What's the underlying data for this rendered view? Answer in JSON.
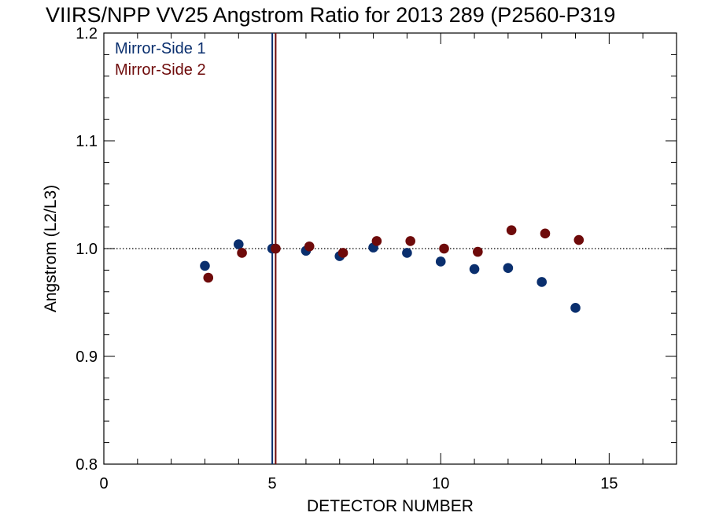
{
  "chart_data": {
    "type": "scatter",
    "title": "VIIRS/NPP VV25 Angstrom Ratio for 2013 289 (P2560-P319",
    "xlabel": "DETECTOR NUMBER",
    "ylabel": "Angstrom (L2/L3)",
    "xlim": [
      0,
      17
    ],
    "ylim": [
      0.8,
      1.2
    ],
    "xticks": [
      0,
      5,
      10,
      15
    ],
    "xtick_labels": [
      "0",
      "5",
      "10",
      "15"
    ],
    "yticks": [
      0.8,
      0.9,
      1.0,
      1.1,
      1.2
    ],
    "ytick_labels": [
      "0.8",
      "0.9",
      "1.0",
      "1.1",
      "1.2"
    ],
    "reference_line": {
      "y": 1.0,
      "style": "dotted"
    },
    "vertical_lines": [
      {
        "x": 5.0,
        "color": "#0a2f6e"
      },
      {
        "x": 5.1,
        "color": "#6e0a0a"
      }
    ],
    "legend_position": "top-left",
    "series": [
      {
        "name": "Mirror-Side 1",
        "color": "#0a2f6e",
        "x": [
          3,
          4,
          5,
          6,
          7,
          8,
          9,
          10,
          11,
          12,
          13,
          14
        ],
        "values": [
          0.984,
          1.004,
          1.0,
          0.998,
          0.993,
          1.001,
          0.996,
          0.988,
          0.981,
          0.982,
          0.969,
          0.945
        ]
      },
      {
        "name": "Mirror-Side 2",
        "color": "#6e0a0a",
        "x": [
          3.1,
          4.1,
          5.1,
          6.1,
          7.1,
          8.1,
          9.1,
          10.1,
          11.1,
          12.1,
          13.1,
          14.1
        ],
        "values": [
          0.973,
          0.996,
          1.0,
          1.002,
          0.996,
          1.007,
          1.007,
          1.0,
          0.997,
          1.017,
          1.014,
          1.008
        ]
      }
    ]
  }
}
